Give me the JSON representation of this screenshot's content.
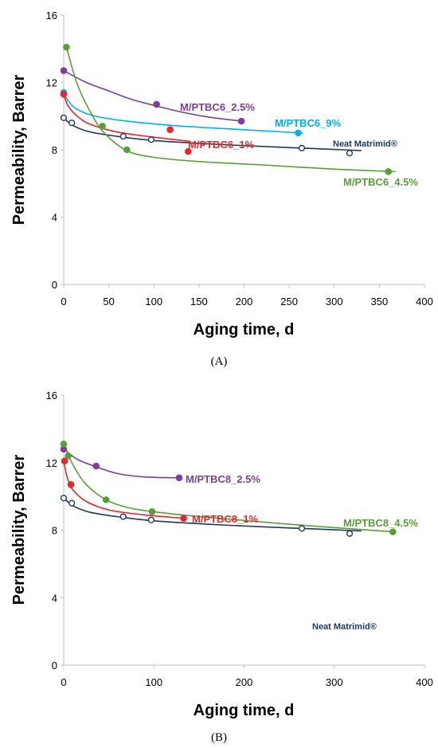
{
  "chart_data": [
    {
      "type": "scatter",
      "title": "",
      "panel_label": "(A)",
      "xlabel": "Aging time, d",
      "ylabel": "Permeability, Barrer",
      "xlim": [
        0,
        400
      ],
      "ylim": [
        0,
        16
      ],
      "xticks": [
        "0",
        "50",
        "100",
        "150",
        "200",
        "250",
        "300",
        "350",
        "400"
      ],
      "xtick_values": [
        0,
        50,
        100,
        150,
        200,
        250,
        300,
        350,
        400
      ],
      "yticks": [
        "0",
        "4",
        "8",
        "12",
        "16"
      ],
      "ytick_values": [
        0,
        4,
        8,
        12,
        16
      ],
      "grid": false,
      "series": [
        {
          "name": "M/PTBC6_2.5%",
          "color": "#7f3f98",
          "marker": "filled",
          "x": [
            0,
            103,
            197
          ],
          "y": [
            12.7,
            10.7,
            9.7
          ],
          "fit_x": [
            0,
            25,
            50,
            75,
            103,
            130,
            160,
            197
          ],
          "fit_y": [
            12.7,
            12.0,
            11.5,
            11.0,
            10.6,
            10.25,
            9.95,
            9.7
          ]
        },
        {
          "name": "M/PTBC6_9%",
          "color": "#00b0f0",
          "marker": "filled",
          "x": [
            0,
            260
          ],
          "y": [
            11.4,
            9.0
          ],
          "fit_x": [
            0,
            5,
            15,
            35,
            70,
            120,
            180,
            230,
            265
          ],
          "fit_y": [
            11.4,
            10.9,
            10.4,
            10.0,
            9.7,
            9.45,
            9.25,
            9.1,
            9.0
          ]
        },
        {
          "name": "M/PTBC6_1%",
          "color": "#e8262b",
          "marker": "filled",
          "x": [
            0,
            118,
            138
          ],
          "y": [
            11.3,
            9.2,
            7.9
          ],
          "fit_x": [
            0,
            5,
            15,
            30,
            60,
            100,
            140
          ],
          "fit_y": [
            11.3,
            10.6,
            10.0,
            9.5,
            9.05,
            8.75,
            8.5
          ]
        },
        {
          "name": "Neat Matrimid®",
          "color": "#1f3864",
          "marker": "open",
          "x": [
            0,
            9,
            66,
            97,
            264,
            317
          ],
          "y": [
            9.9,
            9.6,
            8.8,
            8.6,
            8.1,
            7.8
          ],
          "fit_x": [
            0,
            10,
            30,
            66,
            100,
            160,
            220,
            264,
            300,
            330
          ],
          "fit_y": [
            9.9,
            9.45,
            9.05,
            8.75,
            8.55,
            8.35,
            8.2,
            8.1,
            8.02,
            7.95
          ]
        },
        {
          "name": "M/PTBC6_4.5%",
          "color": "#5a9e3a",
          "marker": "filled",
          "x": [
            3,
            43,
            70,
            360
          ],
          "y": [
            14.1,
            9.4,
            8.0,
            6.7
          ],
          "fit_x": [
            3,
            15,
            30,
            45,
            70,
            100,
            150,
            220,
            300,
            368
          ],
          "fit_y": [
            14.1,
            11.9,
            10.2,
            9.0,
            7.95,
            7.55,
            7.3,
            7.1,
            6.85,
            6.7
          ]
        }
      ]
    },
    {
      "type": "scatter",
      "title": "",
      "panel_label": "(B)",
      "xlabel": "Aging time, d",
      "ylabel": "Permeability, Barrer",
      "xlim": [
        0,
        400
      ],
      "ylim": [
        0,
        16
      ],
      "xticks": [
        "0",
        "100",
        "200",
        "300",
        "400"
      ],
      "xtick_values": [
        0,
        100,
        200,
        300,
        400
      ],
      "yticks": [
        "0",
        "4",
        "8",
        "12",
        "16"
      ],
      "ytick_values": [
        0,
        4,
        8,
        12,
        16
      ],
      "grid": false,
      "series": [
        {
          "name": "M/PTBC8_2.5%",
          "color": "#7f3f98",
          "marker": "filled",
          "x": [
            0,
            36,
            128
          ],
          "y": [
            12.8,
            11.8,
            11.1
          ],
          "fit_x": [
            0,
            15,
            36,
            60,
            90,
            128
          ],
          "fit_y": [
            12.8,
            12.2,
            11.75,
            11.35,
            11.15,
            11.1
          ]
        },
        {
          "name": "M/PTBC8_1%",
          "color": "#e8262b",
          "marker": "filled",
          "x": [
            1,
            8,
            133
          ],
          "y": [
            12.1,
            10.7,
            8.7
          ],
          "fit_x": [
            0,
            4,
            10,
            25,
            50,
            90,
            135
          ],
          "fit_y": [
            12.1,
            11.1,
            10.4,
            9.7,
            9.2,
            8.9,
            8.7
          ]
        },
        {
          "name": "M/PTBC8_4.5%",
          "color": "#5a9e3a",
          "marker": "filled",
          "x": [
            0,
            5,
            47,
            98,
            365
          ],
          "y": [
            13.1,
            12.4,
            9.8,
            9.1,
            7.9
          ],
          "fit_x": [
            0,
            10,
            25,
            47,
            70,
            98,
            150,
            250,
            365
          ],
          "fit_y": [
            13.1,
            11.9,
            10.7,
            9.8,
            9.35,
            9.1,
            8.8,
            8.35,
            7.9
          ]
        },
        {
          "name": "Neat Matrimid®",
          "color": "#1f3864",
          "marker": "open",
          "x": [
            0,
            9,
            66,
            97,
            264,
            317
          ],
          "y": [
            9.9,
            9.6,
            8.8,
            8.6,
            8.1,
            7.8
          ],
          "fit_x": [
            0,
            10,
            30,
            66,
            100,
            160,
            220,
            264,
            300,
            330
          ],
          "fit_y": [
            9.9,
            9.45,
            9.05,
            8.75,
            8.55,
            8.35,
            8.2,
            8.1,
            8.02,
            7.95
          ]
        }
      ]
    }
  ]
}
